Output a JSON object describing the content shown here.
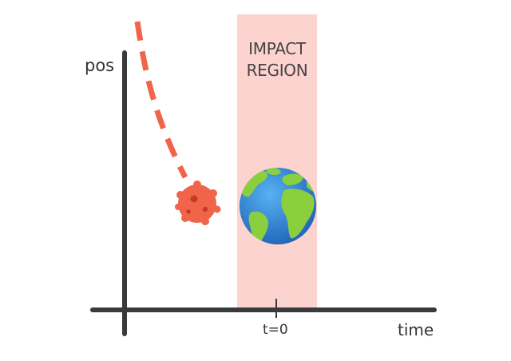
{
  "labels": {
    "y_axis": "pos",
    "x_axis": "time",
    "t0": "t=0",
    "region_line1": "IMPACT",
    "region_line2": "REGION"
  },
  "icons": {
    "asteroid": "asteroid-icon",
    "earth": "earth-globe-icon"
  },
  "colors": {
    "axis": "#3a3a3a",
    "trajectory": "#f06449",
    "asteroid": "#f06449",
    "asteroid_crater": "#c43a25",
    "impact_region": "#fcd3cf",
    "earth_ocean": "#2f86d8",
    "earth_land": "#8ccf3e",
    "text": "#333333"
  }
}
